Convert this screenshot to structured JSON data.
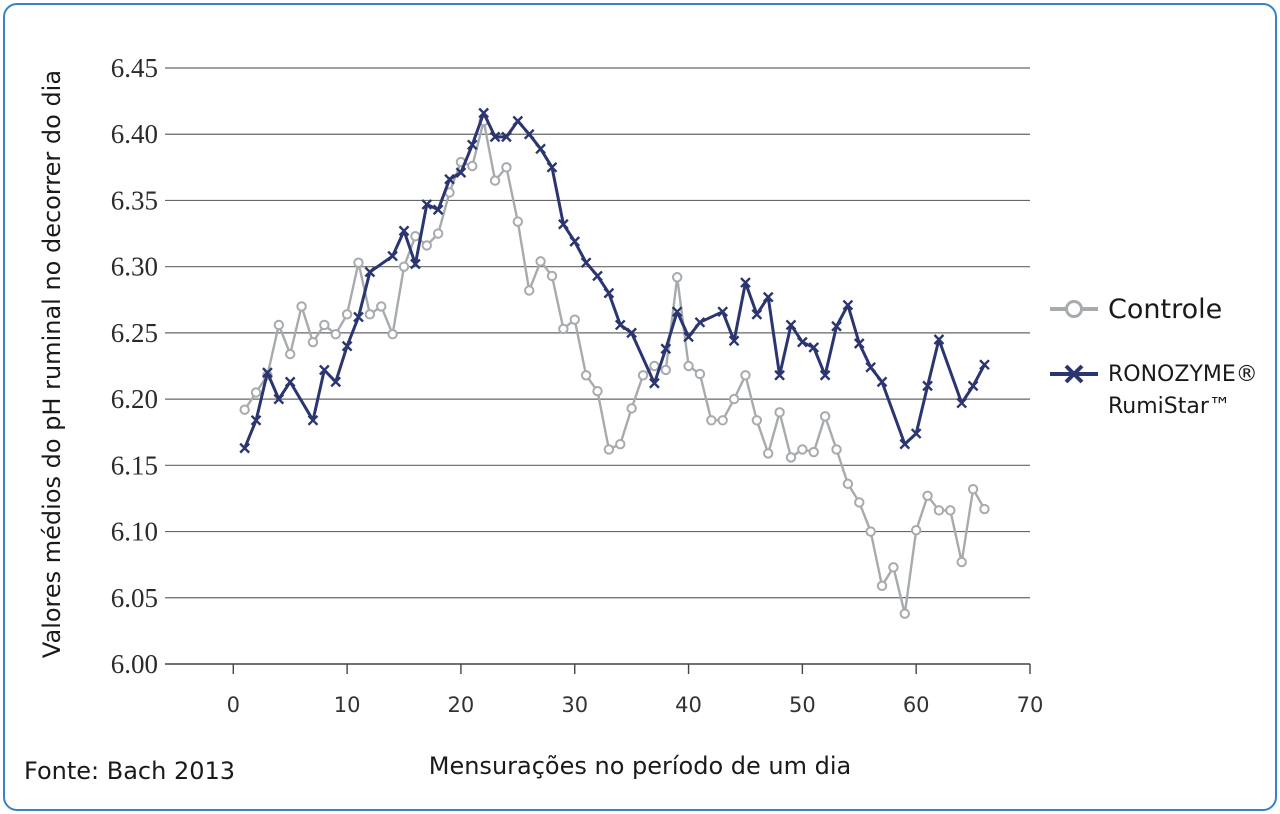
{
  "source_note": "Fonte: Bach 2013",
  "chart_data": {
    "type": "line",
    "xlabel": "Mensurações no período de um dia",
    "ylabel": "Valores médios do pH ruminal no decorrer do dia",
    "xlim": [
      -6,
      70
    ],
    "ylim": [
      6.0,
      6.45
    ],
    "xticks": [
      0,
      10,
      20,
      30,
      40,
      50,
      60,
      70
    ],
    "yticks": [
      "6.00",
      "6.05",
      "6.10",
      "6.15",
      "6.20",
      "6.25",
      "6.30",
      "6.35",
      "6.40",
      "6.45"
    ],
    "grid": true,
    "legend_position": "right",
    "x": [
      1,
      2,
      3,
      4,
      5,
      6,
      7,
      8,
      9,
      10,
      11,
      12,
      13,
      14,
      15,
      16,
      17,
      18,
      19,
      20,
      21,
      22,
      23,
      24,
      25,
      26,
      27,
      28,
      29,
      30,
      31,
      32,
      33,
      34,
      35,
      36,
      37,
      38,
      39,
      40,
      41,
      42,
      43,
      44,
      45,
      46,
      47,
      48,
      49,
      50,
      51,
      52,
      53,
      54,
      55,
      56,
      57,
      58,
      59,
      60,
      61,
      62,
      63,
      64,
      65,
      66,
      67
    ],
    "series": [
      {
        "name": "Controle",
        "color": "#a7abae",
        "marker": "circle",
        "values": [
          6.192,
          6.205,
          6.218,
          6.256,
          6.234,
          6.27,
          6.243,
          6.256,
          6.249,
          6.264,
          6.303,
          6.264,
          6.27,
          6.249,
          6.3,
          6.323,
          6.316,
          6.325,
          6.356,
          6.379,
          6.376,
          6.41,
          6.365,
          6.375,
          6.334,
          6.282,
          6.304,
          6.293,
          6.253,
          6.26,
          6.218,
          6.206,
          6.162,
          6.166,
          6.193,
          6.218,
          6.225,
          6.222,
          6.292,
          6.225,
          6.219,
          6.184,
          6.184,
          6.2,
          6.218,
          6.184,
          6.159,
          6.19,
          6.156,
          6.162,
          6.16,
          6.187,
          6.162,
          6.136,
          6.122,
          6.1,
          6.059,
          6.073,
          6.038,
          6.101,
          6.127,
          6.116,
          6.116,
          6.077,
          6.132,
          6.117,
          null
        ]
      },
      {
        "name": "RONOZYME® RumiStar™",
        "color": "#2b3570",
        "marker": "x",
        "values": [
          6.163,
          6.184,
          6.22,
          6.2,
          6.213,
          null,
          6.184,
          6.222,
          6.213,
          6.24,
          6.262,
          6.296,
          null,
          6.308,
          6.327,
          6.302,
          6.347,
          6.343,
          6.366,
          6.371,
          6.392,
          6.416,
          6.398,
          6.398,
          6.41,
          6.4,
          6.389,
          6.375,
          6.332,
          6.319,
          6.303,
          6.293,
          6.28,
          6.256,
          6.25,
          null,
          6.212,
          6.238,
          6.266,
          6.247,
          6.258,
          null,
          6.266,
          6.244,
          6.288,
          6.264,
          6.277,
          6.218,
          6.256,
          6.243,
          6.239,
          6.218,
          6.255,
          6.271,
          6.242,
          6.224,
          6.213,
          null,
          6.166,
          6.174,
          6.21,
          6.245,
          null,
          6.197,
          6.21,
          6.226,
          null
        ]
      }
    ]
  }
}
